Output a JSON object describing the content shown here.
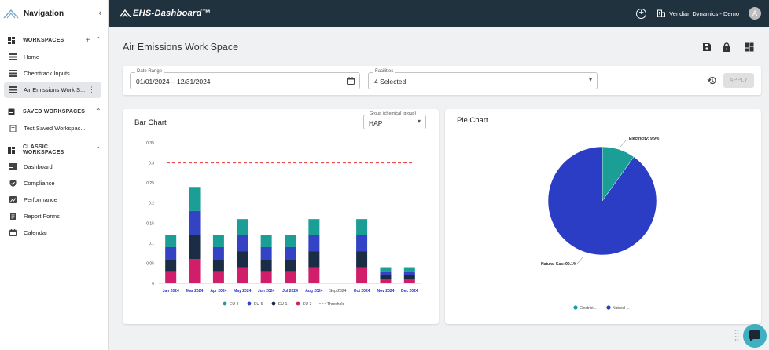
{
  "sidebar": {
    "title": "Navigation",
    "workspaces_label": "WORKSPACES",
    "workspaces": [
      {
        "label": "Home"
      },
      {
        "label": "Chemtrack Inputs"
      },
      {
        "label": "Air Emissions Work S..."
      }
    ],
    "saved_label": "SAVED WORKSPACES",
    "saved": [
      {
        "label": "Test Saved Workspac..."
      }
    ],
    "classic_label": "CLASSIC WORKSPACES",
    "classic": [
      {
        "label": "Dashboard"
      },
      {
        "label": "Compliance"
      },
      {
        "label": "Performance"
      },
      {
        "label": "Report Forms"
      },
      {
        "label": "Calendar"
      }
    ]
  },
  "topbar": {
    "brand": "EHS-Dashboard™",
    "org": "Veridian Dynamics - Demo",
    "avatar": "A"
  },
  "page": {
    "title": "Air Emissions Work Space"
  },
  "filters": {
    "date_label": "Date Range",
    "date_value": "01/01/2024 – 12/31/2024",
    "facilities_label": "Facilities",
    "facilities_value": "4 Selected",
    "apply_label": "APPLY"
  },
  "bar_card": {
    "title": "Bar Chart",
    "group_label": "Group (chemical_group)",
    "group_value": "HAP"
  },
  "pie_card": {
    "title": "Pie Chart"
  },
  "colors": {
    "EU-2": "#1a9e96",
    "EU-6": "#3443c4",
    "EU-1": "#1b2d45",
    "EU-3": "#d11e6a",
    "threshold": "#e53935",
    "electricity": "#1a9e96",
    "natural_gas": "#2b3dc4"
  },
  "chart_data": [
    {
      "type": "bar",
      "stacked": true,
      "title": "Bar Chart",
      "categories": [
        "Jan 2024",
        "Mar 2024",
        "Apr 2024",
        "May 2024",
        "Jun 2024",
        "Jul 2024",
        "Aug 2024",
        "Sep 2024",
        "Oct 2024",
        "Nov 2024",
        "Dec 2024"
      ],
      "linked_categories": [
        "Jan 2024",
        "Mar 2024",
        "Apr 2024",
        "May 2024",
        "Jun 2024",
        "Jul 2024",
        "Aug 2024",
        "Oct 2024",
        "Nov 2024",
        "Dec 2024"
      ],
      "series": [
        {
          "name": "EU-3",
          "values": [
            0.03,
            0.06,
            0.03,
            0.04,
            0.03,
            0.03,
            0.04,
            0,
            0.04,
            0.01,
            0.01
          ]
        },
        {
          "name": "EU-1",
          "values": [
            0.03,
            0.06,
            0.03,
            0.04,
            0.03,
            0.03,
            0.04,
            0,
            0.04,
            0.01,
            0.01
          ]
        },
        {
          "name": "EU-6",
          "values": [
            0.03,
            0.06,
            0.03,
            0.04,
            0.03,
            0.03,
            0.04,
            0,
            0.04,
            0.01,
            0.01
          ]
        },
        {
          "name": "EU-2",
          "values": [
            0.03,
            0.06,
            0.03,
            0.04,
            0.03,
            0.03,
            0.04,
            0,
            0.04,
            0.01,
            0.01
          ]
        }
      ],
      "threshold": {
        "name": "Threshold",
        "value": 0.3
      },
      "ylim": [
        0,
        0.35
      ],
      "yticks": [
        "0",
        "0.05",
        "0.1",
        "0.15",
        "0.2",
        "0.25",
        "0.3",
        "0.35"
      ],
      "ytick_values": [
        0,
        0.05,
        0.1,
        0.15,
        0.2,
        0.25,
        0.3,
        0.35
      ],
      "legend": [
        "EU-2",
        "EU-6",
        "EU-1",
        "EU-3",
        "Threshold"
      ]
    },
    {
      "type": "pie",
      "title": "Pie Chart",
      "slices": [
        {
          "name": "Electricity",
          "value": 9.9,
          "label": "Electricity: 9.9%"
        },
        {
          "name": "Natural Gas",
          "value": 90.1,
          "label": "Natural Gas: 90.1%"
        }
      ],
      "legend": [
        "Electrici...",
        "Natural ..."
      ]
    }
  ]
}
